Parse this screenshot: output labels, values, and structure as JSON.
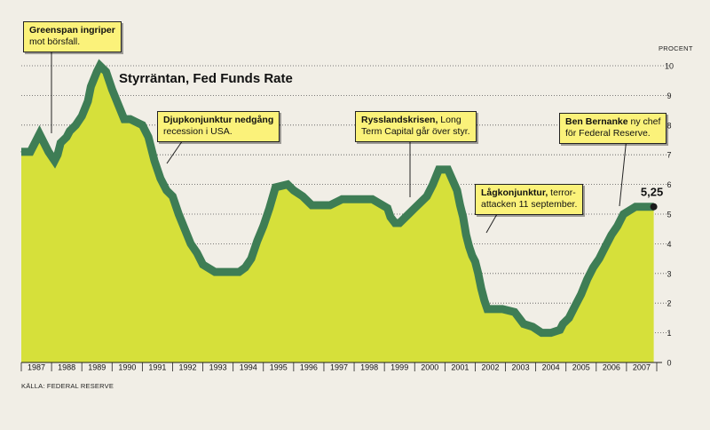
{
  "chart_data": {
    "type": "area",
    "title": "Styrräntan, Fed Funds Rate",
    "ylabel": "PROCENT",
    "source": "KÄLLA: FEDERAL RESERVE",
    "ylim": [
      0,
      10
    ],
    "yticks": [
      "0",
      "1",
      "2",
      "3",
      "4",
      "5",
      "6",
      "7",
      "8",
      "9",
      "10"
    ],
    "x_range": [
      1986.6,
      2007.6
    ],
    "xticks": [
      "1987",
      "1988",
      "1989",
      "1990",
      "1991",
      "1992",
      "1993",
      "1994",
      "1995",
      "1996",
      "1997",
      "1998",
      "1999",
      "2000",
      "2001",
      "2002",
      "2003",
      "2004",
      "2005",
      "2006",
      "2007"
    ],
    "grid": "horizontal dotted",
    "colors": {
      "fill": "#d6e03a",
      "line": "#3e7d55",
      "background": "#f1eee6"
    },
    "series": [
      {
        "x": [
          1986.6,
          1986.9,
          1987.2,
          1987.5,
          1987.7,
          1987.8,
          1987.9,
          1988.1,
          1988.2,
          1988.4,
          1988.6,
          1988.8,
          1988.9,
          1989.1,
          1989.2,
          1989.4,
          1989.6,
          1989.8,
          1990.0,
          1990.2,
          1990.4,
          1990.6,
          1990.8,
          1991.0,
          1991.2,
          1991.4,
          1991.6,
          1991.8,
          1992.0,
          1992.2,
          1992.4,
          1992.6,
          1993.0,
          1993.5,
          1993.8,
          1994.0,
          1994.2,
          1994.4,
          1994.6,
          1994.8,
          1995.0,
          1995.4,
          1995.6,
          1995.9,
          1996.2,
          1996.8,
          1997.2,
          1997.8,
          1998.2,
          1998.7,
          1998.8,
          1998.95,
          1999.1,
          1999.4,
          1999.6,
          1999.8,
          2000.0,
          2000.2,
          2000.4,
          2000.5,
          2000.7,
          2001.0,
          2001.1,
          2001.2,
          2001.3,
          2001.4,
          2001.5,
          2001.6,
          2001.7,
          2001.8,
          2001.9,
          2002.0,
          2002.5,
          2002.9,
          2003.2,
          2003.5,
          2003.8,
          2004.1,
          2004.4,
          2004.5,
          2004.7,
          2004.9,
          2005.1,
          2005.3,
          2005.5,
          2005.7,
          2005.9,
          2006.1,
          2006.3,
          2006.5,
          2006.9,
          2007.3,
          2007.5
        ],
        "y": [
          7.1,
          7.1,
          7.7,
          7.1,
          6.8,
          7.0,
          7.4,
          7.6,
          7.8,
          8.0,
          8.3,
          8.8,
          9.3,
          9.8,
          10.0,
          9.8,
          9.2,
          8.7,
          8.2,
          8.2,
          8.1,
          8.0,
          7.6,
          6.8,
          6.2,
          5.8,
          5.6,
          5.0,
          4.5,
          4.0,
          3.7,
          3.3,
          3.05,
          3.05,
          3.05,
          3.2,
          3.5,
          4.1,
          4.6,
          5.2,
          5.9,
          6.0,
          5.8,
          5.6,
          5.3,
          5.3,
          5.5,
          5.5,
          5.5,
          5.2,
          4.9,
          4.7,
          4.7,
          5.0,
          5.2,
          5.4,
          5.6,
          6.0,
          6.5,
          6.5,
          6.5,
          5.8,
          5.3,
          4.9,
          4.3,
          3.9,
          3.6,
          3.4,
          3.0,
          2.5,
          2.1,
          1.8,
          1.8,
          1.7,
          1.3,
          1.2,
          1.0,
          1.0,
          1.1,
          1.3,
          1.5,
          1.9,
          2.3,
          2.8,
          3.2,
          3.5,
          3.9,
          4.3,
          4.6,
          5.0,
          5.25,
          5.25,
          5.25
        ]
      }
    ],
    "last_value_label": "5,25",
    "annotations": [
      {
        "bold": "Greenspan ingriper",
        "text": "mot börsfall."
      },
      {
        "bold": "Djupkonjunktur nedgång",
        "text": "recession i USA."
      },
      {
        "bold": "Rysslandskrisen,",
        "text_inline": " Long",
        "text": "Term Capital går över styr."
      },
      {
        "bold": "Lågkonjunktur,",
        "text_inline": " terror-",
        "text": "attacken 11 september."
      },
      {
        "bold": "Ben Bernanke",
        "text_inline": " ny chef",
        "text": "för Federal Reserve."
      }
    ]
  }
}
